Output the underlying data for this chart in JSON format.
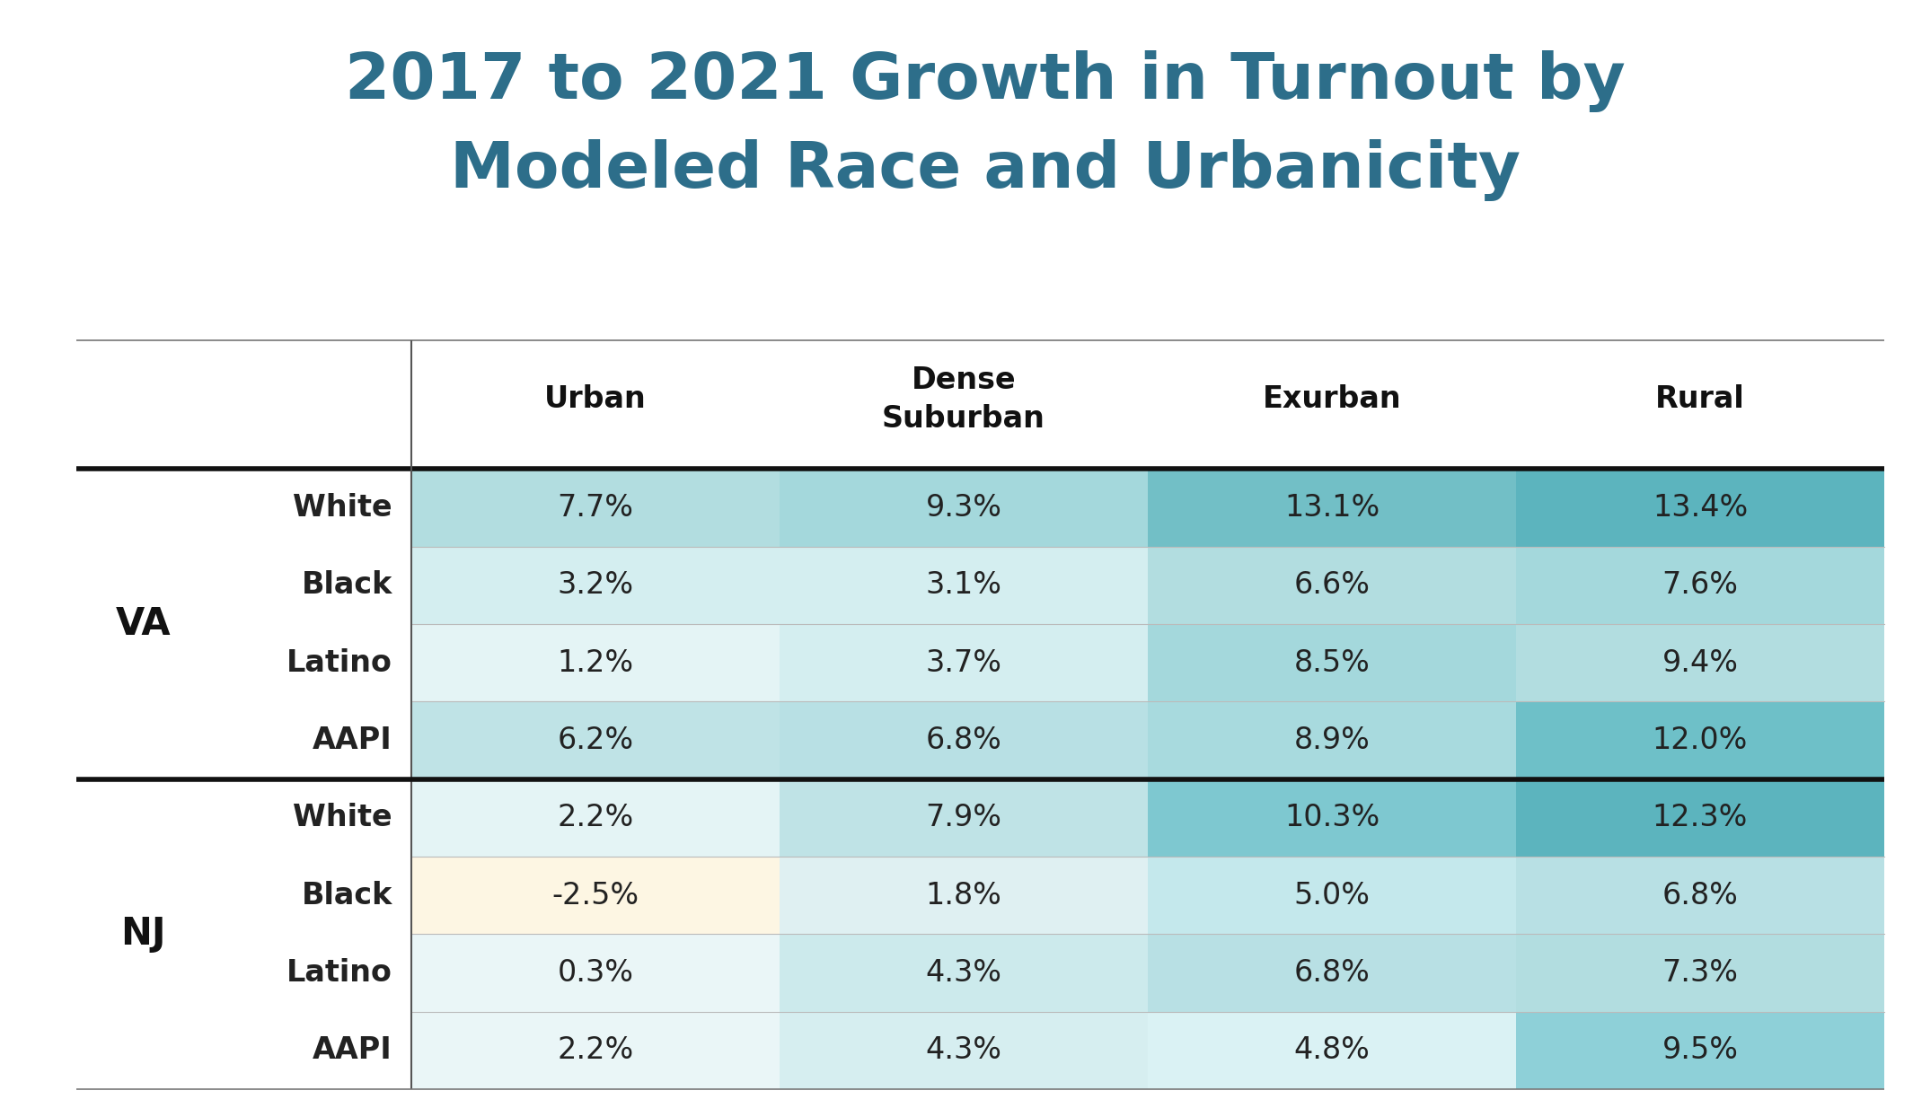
{
  "title_line1": "2017 to 2021 Growth in Turnout by",
  "title_line2": "Modeled Race and Urbanicity",
  "title_color": "#2d6e8a",
  "col_headers": [
    "Urban",
    "Dense\nSuburban",
    "Exurban",
    "Rural"
  ],
  "row_groups": [
    "VA",
    "NJ"
  ],
  "row_labels": [
    "White",
    "Black",
    "Latino",
    "AAPI"
  ],
  "values": [
    [
      "7.7%",
      "9.3%",
      "13.1%",
      "13.4%"
    ],
    [
      "3.2%",
      "3.1%",
      "6.6%",
      "7.6%"
    ],
    [
      "1.2%",
      "3.7%",
      "8.5%",
      "9.4%"
    ],
    [
      "6.2%",
      "6.8%",
      "8.9%",
      "12.0%"
    ],
    [
      "2.2%",
      "7.9%",
      "10.3%",
      "12.3%"
    ],
    [
      "-2.5%",
      "1.8%",
      "5.0%",
      "6.8%"
    ],
    [
      "0.3%",
      "4.3%",
      "6.8%",
      "7.3%"
    ],
    [
      "2.2%",
      "4.3%",
      "4.8%",
      "9.5%"
    ]
  ],
  "cell_colors": [
    [
      "#b2dde0",
      "#a4d8dc",
      "#72bfc6",
      "#5cb4be"
    ],
    [
      "#d4eef0",
      "#d4eef0",
      "#b2dde0",
      "#a4d8dc"
    ],
    [
      "#e4f4f5",
      "#d4eef0",
      "#a4d8dc",
      "#b2dde0"
    ],
    [
      "#bfe3e6",
      "#b8e0e4",
      "#a8dade",
      "#6ec0c8"
    ],
    [
      "#e4f4f5",
      "#bfe3e6",
      "#7ec8d0",
      "#5cb4be"
    ],
    [
      "#fdf6e3",
      "#dff0f2",
      "#c4e8ec",
      "#b8e0e4"
    ],
    [
      "#eaf6f7",
      "#cceaec",
      "#b8e0e4",
      "#b2dde0"
    ],
    [
      "#eaf6f7",
      "#d6eef0",
      "#daf2f4",
      "#8ed0d8"
    ]
  ],
  "background_color": "#ffffff",
  "text_color": "#222222",
  "group_label_color": "#111111",
  "header_color": "#111111",
  "figsize": [
    21.3,
    12.44
  ],
  "dpi": 100
}
